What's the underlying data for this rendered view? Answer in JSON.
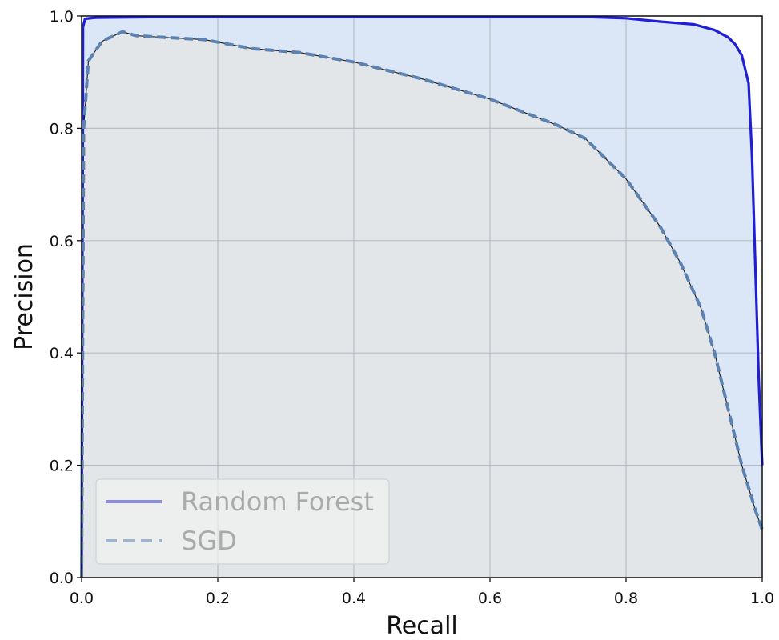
{
  "chart_data": {
    "type": "line",
    "title": "",
    "xlabel": "Recall",
    "ylabel": "Precision",
    "xlim": [
      0.0,
      1.0
    ],
    "ylim": [
      0.0,
      1.0
    ],
    "grid": true,
    "legend_position": "lower-left",
    "x_ticks": [
      "0.0",
      "0.2",
      "0.4",
      "0.6",
      "0.8",
      "1.0"
    ],
    "y_ticks": [
      "0.0",
      "0.2",
      "0.4",
      "0.6",
      "0.8",
      "1.0"
    ],
    "series": [
      {
        "name": "Random Forest",
        "style": "solid",
        "color": "#1f1fd6",
        "legend_color": "#8c8ce0",
        "fill_color": "#dbe6f6",
        "x": [
          0.0,
          0.002,
          0.005,
          0.02,
          0.1,
          0.2,
          0.4,
          0.6,
          0.75,
          0.8,
          0.85,
          0.9,
          0.93,
          0.95,
          0.96,
          0.97,
          0.98,
          0.985,
          0.99,
          0.995,
          1.0
        ],
        "y": [
          0.0,
          0.98,
          0.995,
          0.997,
          0.998,
          0.998,
          0.998,
          0.998,
          0.998,
          0.996,
          0.99,
          0.985,
          0.975,
          0.962,
          0.95,
          0.93,
          0.88,
          0.75,
          0.55,
          0.35,
          0.2
        ]
      },
      {
        "name": "SGD",
        "style": "dashed",
        "color": "#5b82b0",
        "legend_color": "#9fb3c9",
        "fill_color": "#e3e6e8",
        "x": [
          0.0,
          0.003,
          0.01,
          0.03,
          0.06,
          0.08,
          0.12,
          0.18,
          0.25,
          0.32,
          0.4,
          0.5,
          0.6,
          0.7,
          0.74,
          0.8,
          0.85,
          0.88,
          0.91,
          0.93,
          0.95,
          0.97,
          0.99,
          1.0
        ],
        "y": [
          0.0,
          0.8,
          0.92,
          0.955,
          0.972,
          0.965,
          0.962,
          0.958,
          0.942,
          0.935,
          0.918,
          0.888,
          0.852,
          0.805,
          0.782,
          0.71,
          0.625,
          0.56,
          0.48,
          0.4,
          0.3,
          0.2,
          0.12,
          0.085
        ]
      }
    ]
  }
}
